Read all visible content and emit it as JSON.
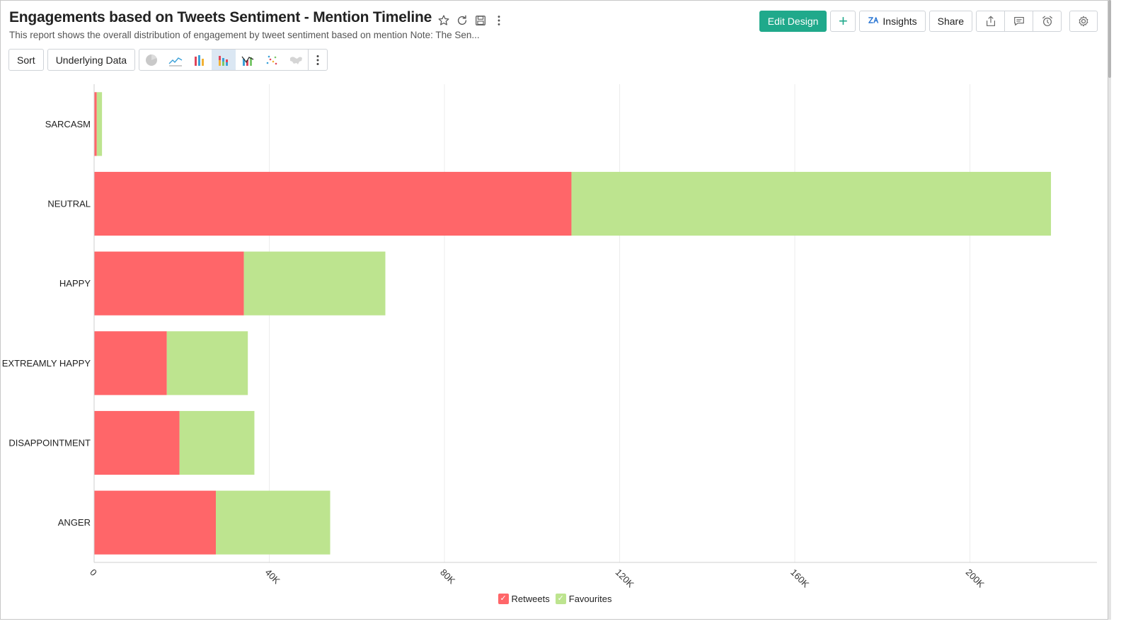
{
  "header": {
    "title": "Engagements based on Tweets Sentiment - Mention Timeline",
    "subtitle": "This report shows the overall distribution of engagement by tweet sentiment based on mention Note: The Sen..."
  },
  "toolbar": {
    "edit_design": "Edit Design",
    "add_symbol": "+",
    "insights": "Insights",
    "share": "Share"
  },
  "view_toolbar": {
    "sort": "Sort",
    "underlying_data": "Underlying Data",
    "chart_types": [
      "pie",
      "line",
      "bar",
      "stacked-bar",
      "combo",
      "scatter",
      "map"
    ],
    "active_chart_type": "stacked-bar"
  },
  "icons": {
    "favorite": "star-icon",
    "refresh": "refresh-icon",
    "save": "save-icon",
    "more": "more-vertical-icon",
    "export": "export-icon",
    "comment": "comment-icon",
    "alarm": "alarm-icon",
    "settings": "gear-icon"
  },
  "colors": {
    "accent": "#20a98b",
    "retweets": "#ff6669",
    "favourites": "#bde48f"
  },
  "chart_data": {
    "type": "bar",
    "orientation": "horizontal",
    "stacked": true,
    "categories": [
      "SARCASM",
      "NEUTRAL",
      "HAPPY",
      "EXTREAMLY HAPPY",
      "DISAPPOINTMENT",
      "ANGER"
    ],
    "series": [
      {
        "name": "Retweets",
        "color": "#ff6669",
        "values": [
          600,
          109000,
          34200,
          16600,
          19500,
          27800
        ]
      },
      {
        "name": "Favourites",
        "color": "#bde48f",
        "values": [
          1200,
          109500,
          32300,
          18500,
          17100,
          26100
        ]
      }
    ],
    "x_ticks": [
      "0",
      "40K",
      "80K",
      "120K",
      "160K",
      "200K"
    ],
    "x_tick_values": [
      0,
      40000,
      80000,
      120000,
      160000,
      200000
    ],
    "xlim": [
      0,
      229000
    ],
    "grid": true,
    "legend_position": "bottom"
  }
}
